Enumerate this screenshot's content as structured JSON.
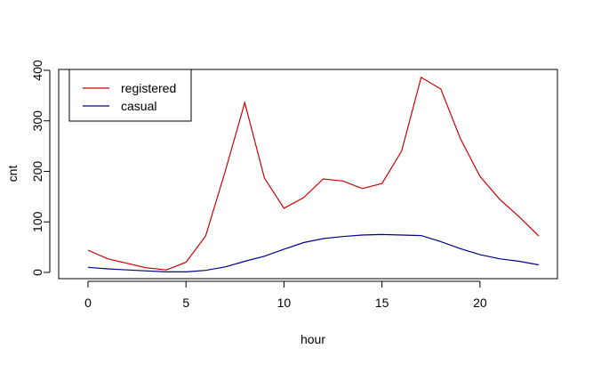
{
  "chart_data": {
    "type": "line",
    "xlabel": "hour",
    "ylabel": "cnt",
    "xlim": [
      0,
      23
    ],
    "ylim": [
      0,
      400
    ],
    "x_ticks": [
      0,
      5,
      10,
      15,
      20
    ],
    "y_ticks": [
      0,
      100,
      200,
      300,
      400
    ],
    "x": [
      0,
      1,
      2,
      3,
      4,
      5,
      6,
      7,
      8,
      9,
      10,
      11,
      12,
      13,
      14,
      15,
      16,
      17,
      18,
      19,
      20,
      21,
      22,
      23
    ],
    "legend_position": "top-left",
    "grid": false,
    "series": [
      {
        "name": "registered",
        "color": "#cc0000",
        "values": [
          44,
          27,
          18,
          9,
          5,
          20,
          72,
          200,
          336,
          187,
          127,
          148,
          185,
          181,
          166,
          176,
          240,
          386,
          363,
          265,
          190,
          145,
          110,
          72
        ]
      },
      {
        "name": "casual",
        "color": "#00008b",
        "values": [
          10,
          7,
          5,
          3,
          1,
          1,
          4,
          11,
          22,
          32,
          46,
          59,
          67,
          71,
          74,
          75,
          74,
          73,
          61,
          47,
          35,
          27,
          22,
          15
        ]
      }
    ]
  }
}
